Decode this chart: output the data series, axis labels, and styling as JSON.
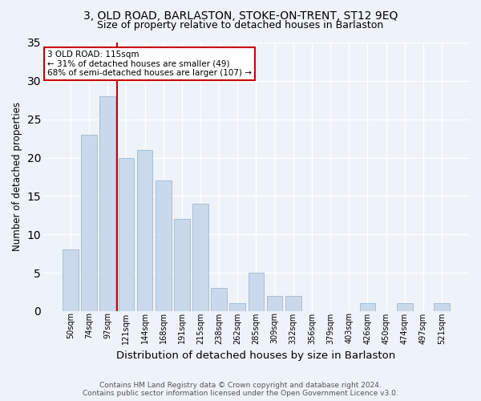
{
  "title": "3, OLD ROAD, BARLASTON, STOKE-ON-TRENT, ST12 9EQ",
  "subtitle": "Size of property relative to detached houses in Barlaston",
  "xlabel": "Distribution of detached houses by size in Barlaston",
  "ylabel": "Number of detached properties",
  "footer_line1": "Contains HM Land Registry data © Crown copyright and database right 2024.",
  "footer_line2": "Contains public sector information licensed under the Open Government Licence v3.0.",
  "bar_labels": [
    "50sqm",
    "74sqm",
    "97sqm",
    "121sqm",
    "144sqm",
    "168sqm",
    "191sqm",
    "215sqm",
    "238sqm",
    "262sqm",
    "285sqm",
    "309sqm",
    "332sqm",
    "356sqm",
    "379sqm",
    "403sqm",
    "426sqm",
    "450sqm",
    "474sqm",
    "497sqm",
    "521sqm"
  ],
  "bar_values": [
    8,
    23,
    28,
    20,
    21,
    17,
    12,
    14,
    3,
    1,
    5,
    2,
    2,
    0,
    0,
    0,
    1,
    0,
    1,
    0,
    1
  ],
  "bar_color": "#c9d9eb",
  "bar_edgecolor": "#a0b8d0",
  "vline_color": "#cc0000",
  "vline_pos": 2.5,
  "annotation_text": "3 OLD ROAD: 115sqm\n← 31% of detached houses are smaller (49)\n68% of semi-detached houses are larger (107) →",
  "annotation_box_edgecolor": "#cc0000",
  "annotation_box_facecolor": "#ffffff",
  "ylim": [
    0,
    35
  ],
  "yticks": [
    0,
    5,
    10,
    15,
    20,
    25,
    30,
    35
  ],
  "bg_color": "#eef2f9",
  "grid_color": "#ffffff",
  "title_fontsize": 10,
  "subtitle_fontsize": 9,
  "xlabel_fontsize": 9.5,
  "ylabel_fontsize": 8.5,
  "annotation_fontsize": 7.5,
  "tick_fontsize": 7,
  "footer_fontsize": 6.5
}
